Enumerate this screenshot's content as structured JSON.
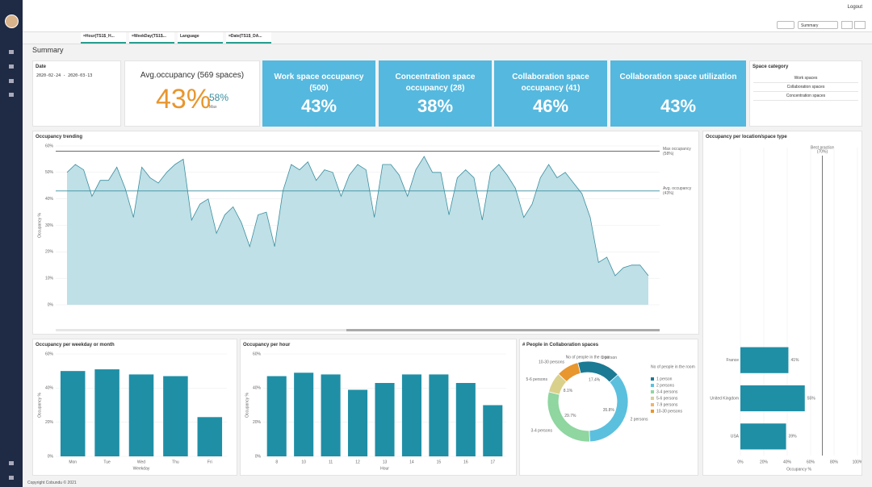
{
  "top_bar": {
    "logout": "Logout"
  },
  "toolbar": {
    "sheet": "Summary"
  },
  "selections": [
    "=Hour(TS1$_H...",
    "=WeekDay(TS1$...",
    "Language",
    "=Date(TS1$_DA..."
  ],
  "sheet_title": "Summary",
  "date_filter": {
    "label": "Date",
    "range": "2020-02-24 - 2020-03-13"
  },
  "avg_kpi": {
    "title": "Avg.occupancy (569 spaces)",
    "value": "43%",
    "max_value": "58%",
    "max_label": "Max"
  },
  "kpis": [
    {
      "title": "Work space occupancy (500)",
      "value": "43%"
    },
    {
      "title": "Concentration space occupancy (28)",
      "value": "38%"
    },
    {
      "title": "Collaboration space occupancy (41)",
      "value": "46%"
    },
    {
      "title": "Collaboration space utilization",
      "value": "43%"
    }
  ],
  "space_category": {
    "title": "Space category",
    "items": [
      "Work spaces",
      "Collaboration spaces",
      "Concentration spaces"
    ]
  },
  "chart_data": [
    {
      "type": "area",
      "title": "Occupancy trending",
      "y_label": "Occupancy %",
      "color": "#3a8ea0",
      "fill": "#bfe0e6",
      "values": [
        50,
        53,
        51,
        41,
        47,
        47,
        52,
        44,
        33,
        52,
        48,
        46,
        50,
        53,
        55,
        32,
        38,
        40,
        27,
        34,
        37,
        31,
        22,
        34,
        35,
        22,
        43,
        53,
        51,
        54,
        47,
        51,
        50,
        41,
        49,
        53,
        51,
        33,
        53,
        53,
        49,
        41,
        51,
        56,
        50,
        50,
        34,
        48,
        51,
        48,
        32,
        50,
        53,
        49,
        44,
        33,
        38,
        48,
        53,
        48,
        50,
        46,
        42,
        33,
        16,
        18,
        11,
        14,
        15,
        15,
        11
      ],
      "ylim": [
        0,
        60
      ],
      "yticks": [
        {
          "value": 0,
          "label": "0%"
        },
        {
          "value": 10,
          "label": "10%"
        },
        {
          "value": 20,
          "label": "20%"
        },
        {
          "value": 30,
          "label": "30%"
        },
        {
          "value": 40,
          "label": "40%"
        },
        {
          "value": 50,
          "label": "50%"
        },
        {
          "value": 60,
          "label": "60%"
        }
      ],
      "reference_lines": [
        {
          "label": "Max occupancy",
          "value": 58,
          "value_label": "(58%)",
          "color": "#555555"
        },
        {
          "label": "Avg. occupancy",
          "value": 43,
          "value_label": "(43%)",
          "color": "#3a8ea0"
        }
      ]
    },
    {
      "type": "bar",
      "title": "Occupancy per weekday or month",
      "x_label": "Weekday",
      "y_label": "Occupancy %",
      "color": "#1f8fa6",
      "categories": [
        "Mon",
        "Tue",
        "Wed",
        "Thu",
        "Fri"
      ],
      "values": [
        50,
        51,
        48,
        47,
        23
      ],
      "ylim": [
        0,
        60
      ],
      "yticks": [
        {
          "value": 0,
          "label": "0%"
        },
        {
          "value": 20,
          "label": "20%"
        },
        {
          "value": 40,
          "label": "40%"
        },
        {
          "value": 60,
          "label": "60%"
        }
      ]
    },
    {
      "type": "bar",
      "title": "Occupancy per hour",
      "x_label": "Hour",
      "y_label": "Occupancy %",
      "color": "#1f8fa6",
      "categories": [
        "8",
        "10",
        "11",
        "12",
        "13",
        "14",
        "15",
        "16",
        "17"
      ],
      "values": [
        47,
        49,
        48,
        39,
        43,
        48,
        48,
        43,
        30
      ],
      "ylim": [
        0,
        60
      ],
      "yticks": [
        {
          "value": 0,
          "label": "0%"
        },
        {
          "value": 20,
          "label": "20%"
        },
        {
          "value": 40,
          "label": "40%"
        },
        {
          "value": 60,
          "label": "60%"
        }
      ]
    },
    {
      "type": "pie",
      "title": "# People in Collaboration spaces",
      "subtitle": "No of people in the room",
      "legend_title": "No of people in the room",
      "categories": [
        "1 person",
        "2 persons",
        "3-4 persons",
        "5-6 persons",
        "7-9 persons",
        "10-30 persons"
      ],
      "values": [
        17.4,
        35.8,
        29.7,
        8.1,
        null,
        9
      ],
      "value_labels": [
        "17.4%",
        "35.8%",
        "29.7%",
        "8.1%",
        null,
        null
      ],
      "colors": [
        "#1b7a94",
        "#5bc0de",
        "#8fd6a0",
        "#d9d08c",
        "#f2b36b",
        "#e8962e"
      ]
    },
    {
      "type": "hbar",
      "title": "Occupancy per location/space type",
      "x_label": "Occupancy %",
      "color": "#1f8fa6",
      "categories": [
        "France",
        "United Kingdom",
        "USA"
      ],
      "values": [
        41,
        55,
        39
      ],
      "value_labels": [
        "41%",
        "55%",
        "39%"
      ],
      "xlim": [
        0,
        100
      ],
      "xticks": [
        {
          "value": 0,
          "label": "0%"
        },
        {
          "value": 20,
          "label": "20%"
        },
        {
          "value": 40,
          "label": "40%"
        },
        {
          "value": 60,
          "label": "60%"
        },
        {
          "value": 80,
          "label": "80%"
        },
        {
          "value": 100,
          "label": "100%"
        }
      ],
      "reference_line": {
        "label": "Best practice",
        "value": 70,
        "value_label": "(70%)"
      }
    }
  ],
  "footer": "Copyright Cobundu © 2021"
}
